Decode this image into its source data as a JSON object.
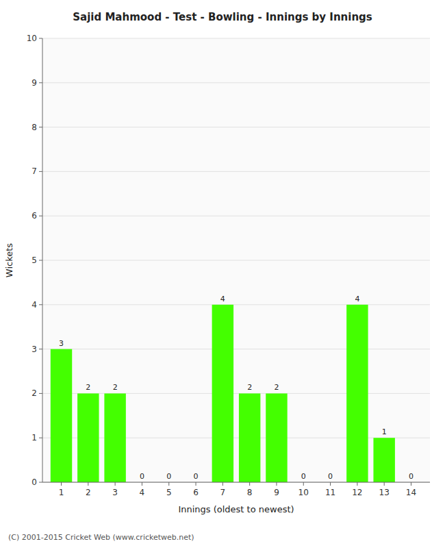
{
  "chart_data": {
    "type": "bar",
    "title": "Sajid Mahmood - Test - Bowling - Innings by Innings",
    "x_label": "Innings (oldest to newest)",
    "y_label": "Wickets",
    "x": [
      1,
      2,
      3,
      4,
      5,
      6,
      7,
      8,
      9,
      10,
      11,
      12,
      13,
      14
    ],
    "values": [
      3,
      2,
      2,
      0,
      0,
      0,
      4,
      2,
      2,
      0,
      0,
      4,
      1,
      0
    ],
    "color": "#44ff00",
    "xlim": [
      0.3,
      14.7
    ],
    "xticks": [
      1,
      2,
      3,
      4,
      5,
      6,
      7,
      8,
      9,
      10,
      11,
      12,
      13,
      14
    ],
    "ylim": [
      0,
      10
    ],
    "yticks": [
      0,
      1,
      2,
      3,
      4,
      5,
      6,
      7,
      8,
      9,
      10
    ],
    "grid": true,
    "data_labels": true,
    "annotations": [
      "(C) 2001-2015 Cricket Web (www.cricketweb.net)"
    ]
  }
}
